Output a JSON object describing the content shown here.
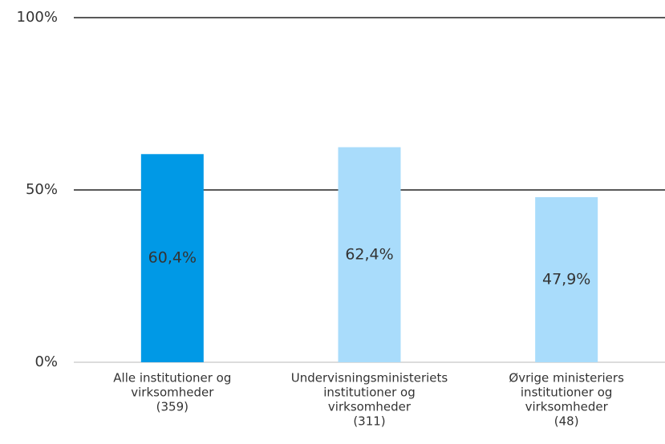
{
  "chart_data": {
    "type": "bar",
    "categories": [
      [
        "Alle institutioner og",
        "virksomheder",
        "(359)"
      ],
      [
        "Undervisningsministeriets",
        "institutioner og",
        "virksomheder",
        "(311)"
      ],
      [
        "Øvrige ministeriers",
        "institutioner og",
        "virksomheder",
        "(48)"
      ]
    ],
    "values": [
      60.4,
      62.4,
      47.9
    ],
    "value_labels": [
      "60,4%",
      "62,4%",
      "47,9%"
    ],
    "colors": [
      "#0099e6",
      "#a9dcfb",
      "#a9dcfb"
    ],
    "ylim": [
      0,
      100
    ],
    "yticks": [
      {
        "value": 0,
        "label": "0%"
      },
      {
        "value": 50,
        "label": "50%"
      },
      {
        "value": 100,
        "label": "100%"
      }
    ],
    "grid": true
  }
}
